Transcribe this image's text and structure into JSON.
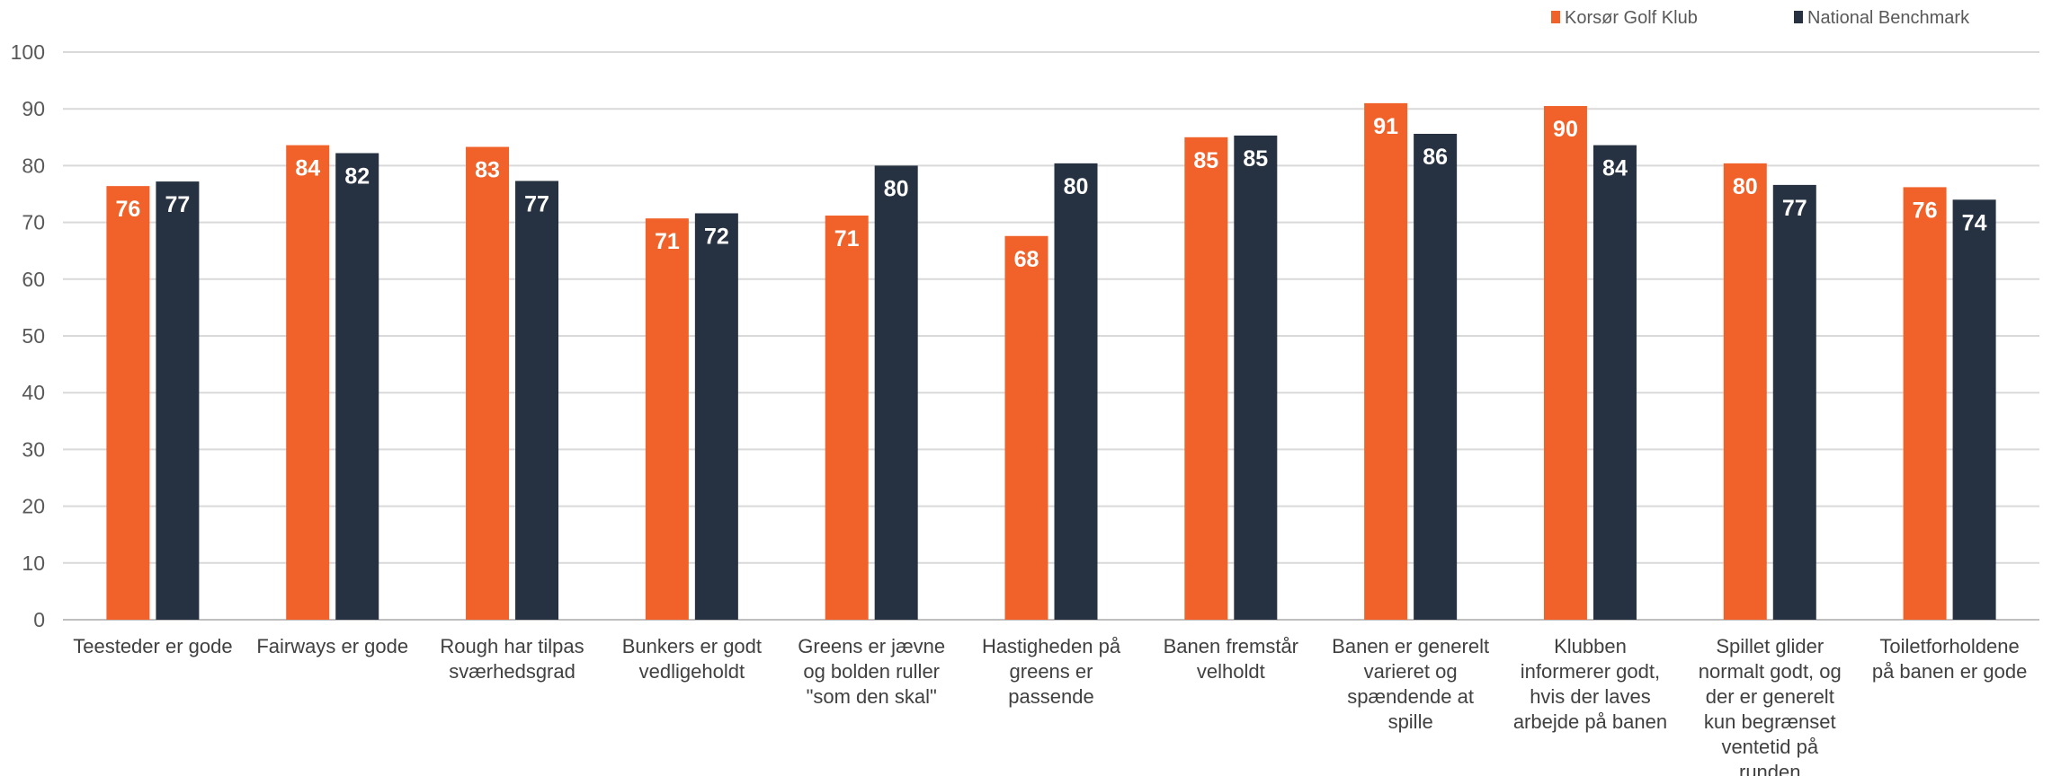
{
  "chart_data": {
    "type": "bar",
    "categories": [
      "Teesteder er gode",
      "Fairways er gode",
      "Rough har tilpas sværhedsgrad",
      "Bunkers er godt vedligeholdt",
      "Greens er jævne og bolden ruller \"som den skal\"",
      "Hastigheden på greens er passende",
      "Banen fremstår velholdt",
      "Banen er generelt varieret og spændende at spille",
      "Klubben informerer godt, hvis der laves arbejde på banen",
      "Spillet glider normalt godt, og der er generelt kun begrænset ventetid på runden",
      "Toiletforholdene på banen er gode"
    ],
    "category_lines": [
      [
        "Teesteder er gode"
      ],
      [
        "Fairways er gode"
      ],
      [
        "Rough har tilpas",
        "sværhedsgrad"
      ],
      [
        "Bunkers er godt",
        "vedligeholdt"
      ],
      [
        "Greens er jævne",
        "og bolden ruller",
        "\"som den skal\""
      ],
      [
        "Hastigheden på",
        "greens er",
        "passende"
      ],
      [
        "Banen fremstår",
        "velholdt"
      ],
      [
        "Banen er generelt",
        "varieret og",
        "spændende at",
        "spille"
      ],
      [
        "Klubben",
        "informerer godt,",
        "hvis der laves",
        "arbejde på banen"
      ],
      [
        "Spillet glider",
        "normalt godt, og",
        "der er generelt",
        "kun begrænset",
        "ventetid på",
        "runden"
      ],
      [
        "Toiletforholdene",
        "på banen er gode"
      ]
    ],
    "series": [
      {
        "name": "Korsør Golf Klub",
        "color": "#F0622A",
        "values": [
          76.4,
          83.6,
          83.3,
          70.7,
          71.2,
          67.6,
          85.0,
          91.0,
          90.5,
          80.4,
          76.2
        ],
        "labels": [
          "76",
          "84",
          "83",
          "71",
          "71",
          "68",
          "85",
          "91",
          "90",
          "80",
          "76"
        ]
      },
      {
        "name": "National Benchmark",
        "color": "#263241",
        "values": [
          77.2,
          82.2,
          77.3,
          71.6,
          80.0,
          80.4,
          85.3,
          85.6,
          83.6,
          76.6,
          74.0
        ],
        "labels": [
          "77",
          "82",
          "77",
          "72",
          "80",
          "80",
          "85",
          "86",
          "84",
          "77",
          "74"
        ]
      }
    ],
    "ylim": [
      0,
      100
    ],
    "yticks": [
      "0",
      "10",
      "20",
      "30",
      "40",
      "50",
      "60",
      "70",
      "80",
      "90",
      "100"
    ],
    "grid": true,
    "legend_position": "top-right",
    "title": "",
    "xlabel": "",
    "ylabel": ""
  }
}
